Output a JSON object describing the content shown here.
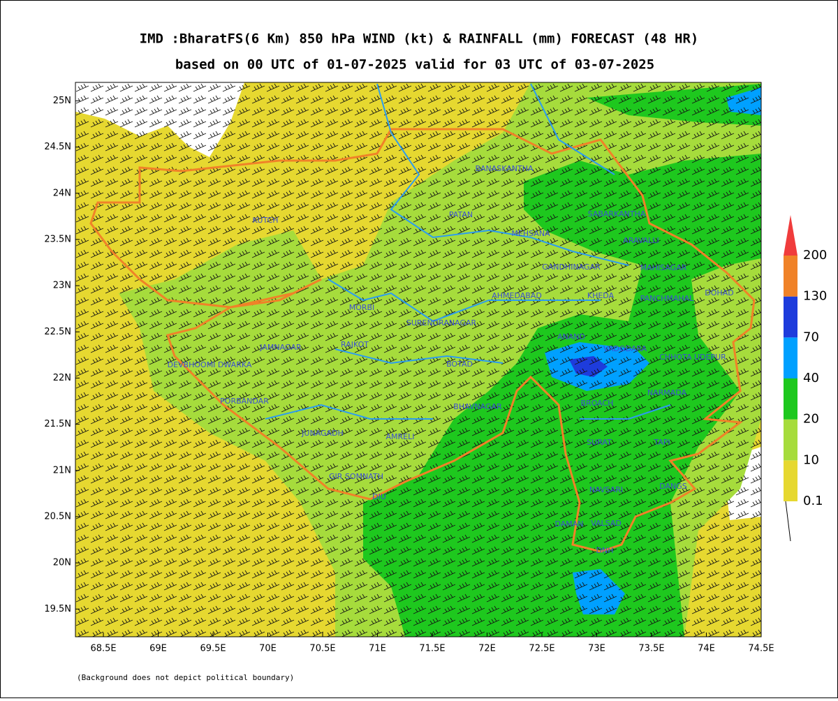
{
  "title": "IMD :BharatFS(6 Km) 850 hPa WIND (kt) & RAINFALL (mm) FORECAST (48 HR)",
  "subtitle": "based on 00 UTC of 01-07-2025 valid for 03 UTC of 03-07-2025",
  "map": {
    "xlim": [
      68.245,
      74.5
    ],
    "ylim": [
      19.2,
      25.2
    ],
    "xticks": [
      {
        "value": 68.5,
        "label": "68.5E"
      },
      {
        "value": 69,
        "label": "69E"
      },
      {
        "value": 69.5,
        "label": "69.5E"
      },
      {
        "value": 70,
        "label": "70E"
      },
      {
        "value": 70.5,
        "label": "70.5E"
      },
      {
        "value": 71,
        "label": "71E"
      },
      {
        "value": 71.5,
        "label": "71.5E"
      },
      {
        "value": 72,
        "label": "72E"
      },
      {
        "value": 72.5,
        "label": "72.5E"
      },
      {
        "value": 73,
        "label": "73E"
      },
      {
        "value": 73.5,
        "label": "73.5E"
      },
      {
        "value": 74,
        "label": "74E"
      },
      {
        "value": 74.5,
        "label": "74.5E"
      }
    ],
    "yticks": [
      {
        "value": 19.5,
        "label": "19.5N"
      },
      {
        "value": 20,
        "label": "20N"
      },
      {
        "value": 20.5,
        "label": "20.5N"
      },
      {
        "value": 21,
        "label": "21N"
      },
      {
        "value": 21.5,
        "label": "21.5N"
      },
      {
        "value": 22,
        "label": "22N"
      },
      {
        "value": 22.5,
        "label": "22.5N"
      },
      {
        "value": 23,
        "label": "23N"
      },
      {
        "value": 23.5,
        "label": "23.5N"
      },
      {
        "value": 24,
        "label": "24N"
      },
      {
        "value": 24.5,
        "label": "24.5N"
      },
      {
        "value": 25,
        "label": "25N"
      }
    ],
    "districts": [
      "KUTCH",
      "BANASKANTHA",
      "PATAN",
      "MEHSANA",
      "SABARKANTHA",
      "ARAVALLI",
      "GANDHINAGAR",
      "MAHISAGAR",
      "AHMEDABAD",
      "KHEDA",
      "PANCHMAHAL",
      "DOHAD",
      "MORBI",
      "SURENDRANAGAR",
      "ANAND",
      "VADODARA",
      "JAMNAGAR",
      "RAJKOT",
      "DEVBHOOMI DWARKA",
      "BOTAD",
      "CHHOTA UDEPUR",
      "BROACH",
      "NARMADA",
      "PORBANDAR",
      "BHAVNAGAR",
      "JUNAGADH",
      "AMRELI",
      "SURAT",
      "TAPI",
      "GIR SOMNATH",
      "DIU",
      "NAVSARI",
      "DANGS",
      "DAMAN",
      "VALSAD",
      "DNH"
    ]
  },
  "legend": {
    "levels": [
      0.1,
      10,
      20,
      40,
      70,
      130,
      200
    ],
    "colors": [
      "#e6d830",
      "#a6dc3c",
      "#1ec81e",
      "#00a0ff",
      "#1e3cdc",
      "#f08228",
      "#f03c3c"
    ]
  },
  "footnote": "(Background does not depict political boundary)"
}
